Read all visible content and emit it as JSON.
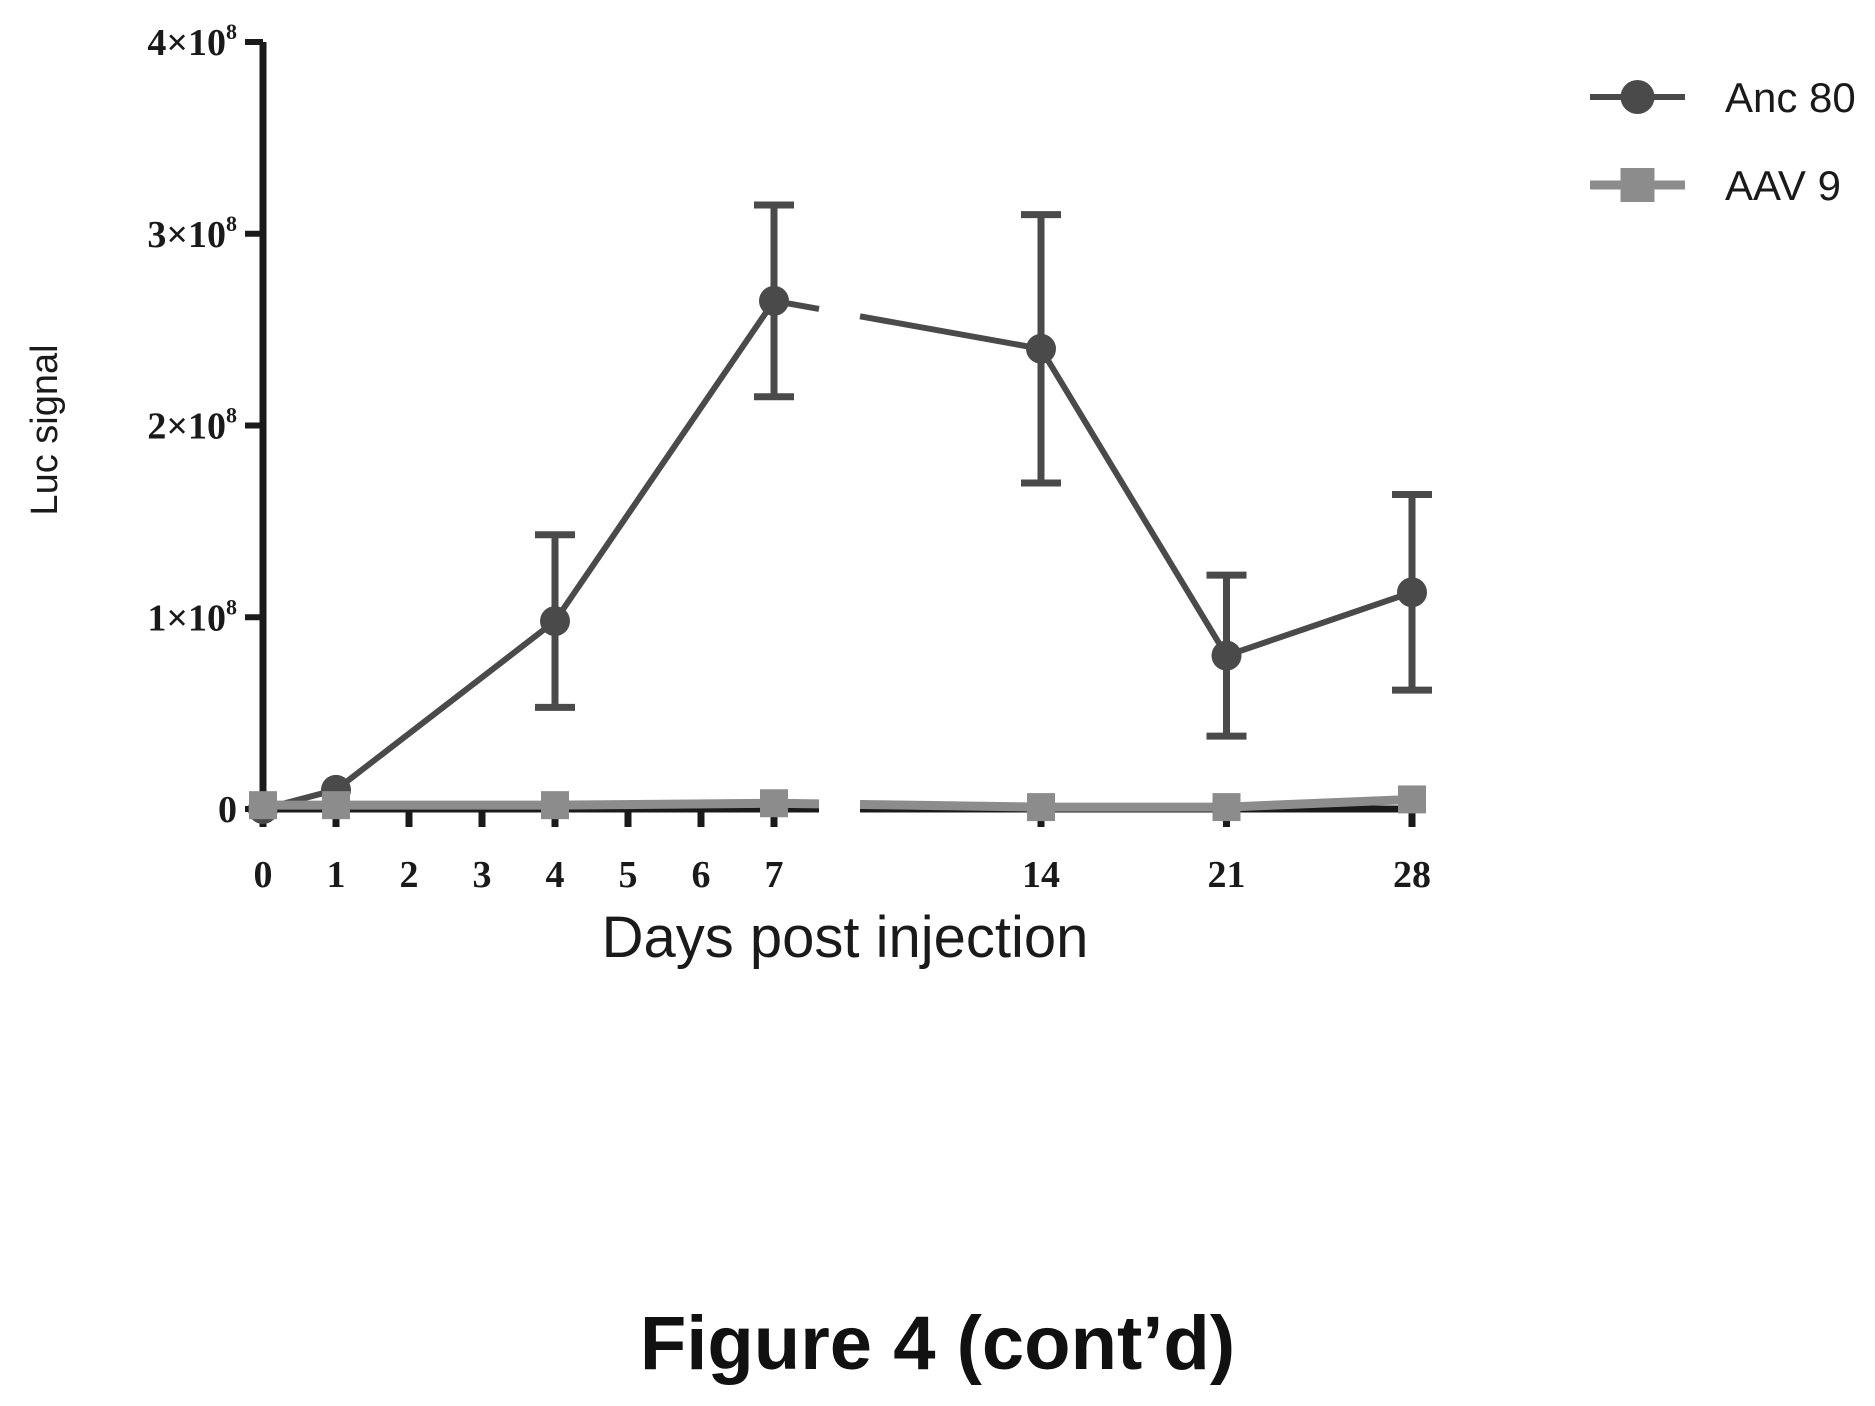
{
  "caption": "Figure 4 (cont’d)",
  "colors": {
    "anc80": "#4a4a4a",
    "aav9": "#8c8c8c",
    "axis": "#1a1a1a"
  },
  "chart_data": {
    "type": "line",
    "title": "",
    "xlabel": "Days post injection",
    "ylabel": "Luc signal",
    "x_ticks": [
      "0",
      "1",
      "2",
      "3",
      "4",
      "5",
      "6",
      "7",
      "14",
      "21",
      "28"
    ],
    "x_axis_break": [
      7,
      14
    ],
    "y_ticks": [
      "0",
      "1×10",
      "2×10",
      "3×10",
      "4×10"
    ],
    "y_tick_values": [
      0,
      100000000,
      200000000,
      300000000,
      400000000
    ],
    "y_tick_exponent": "8",
    "ylim": [
      0,
      400000000
    ],
    "grid": false,
    "legend_position": "top-right",
    "series": [
      {
        "name": "Anc 80",
        "marker": "circle",
        "x": [
          0,
          1,
          4,
          7,
          14,
          21,
          28
        ],
        "y": [
          0,
          10000000,
          98000000,
          265000000,
          240000000,
          80000000,
          113000000
        ],
        "error": [
          0,
          0,
          45000000,
          50000000,
          70000000,
          42000000,
          51000000
        ]
      },
      {
        "name": "AAV 9",
        "marker": "square",
        "x": [
          0,
          1,
          4,
          7,
          14,
          21,
          28
        ],
        "y": [
          2000000,
          2000000,
          2000000,
          3000000,
          1000000,
          1000000,
          5000000
        ],
        "error": [
          0,
          0,
          0,
          0,
          0,
          0,
          0
        ]
      }
    ]
  }
}
